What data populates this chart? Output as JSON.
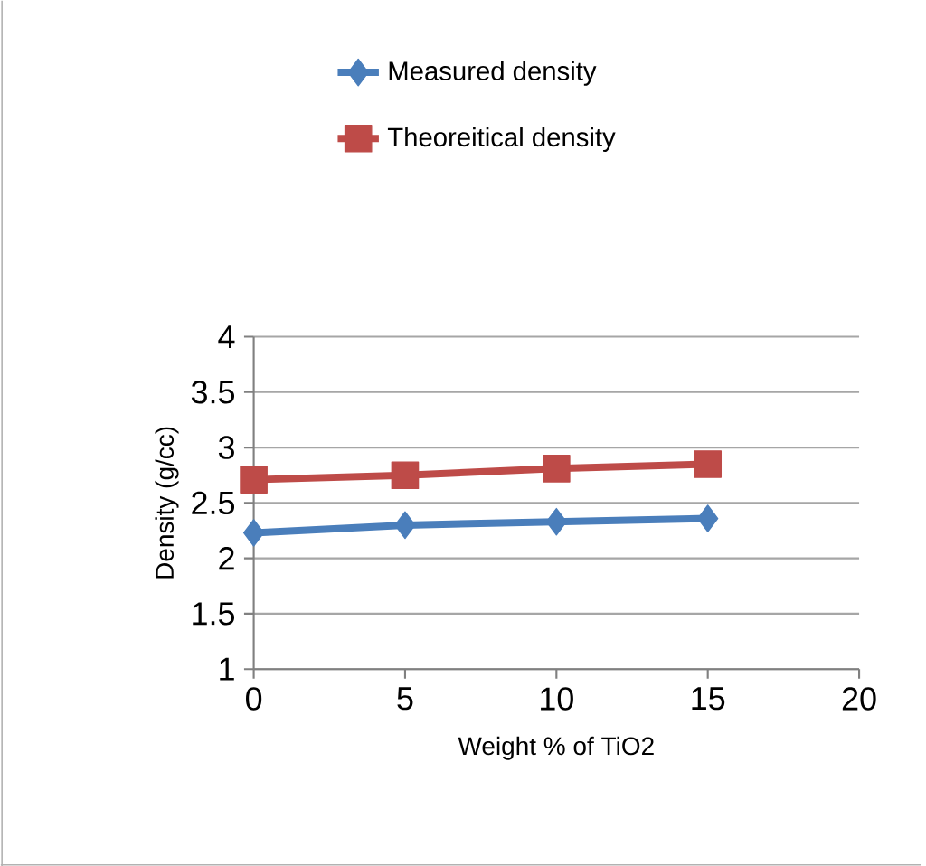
{
  "chart_data": {
    "type": "line",
    "xlabel": "Weight % of TiO2",
    "ylabel": "Density (g/cc)",
    "x": [
      0,
      5,
      10,
      15
    ],
    "series": [
      {
        "name": "Measured density",
        "color": "#4a7ebb",
        "marker": "diamond",
        "values": [
          2.23,
          2.3,
          2.33,
          2.36
        ]
      },
      {
        "name": "Theoreitical density",
        "color": "#be4b48",
        "marker": "square",
        "values": [
          2.71,
          2.75,
          2.81,
          2.85
        ]
      }
    ],
    "xlim": [
      0,
      20
    ],
    "xticks": [
      0,
      5,
      10,
      15,
      20
    ],
    "ylim": [
      1,
      4
    ],
    "yticks": [
      1,
      1.5,
      2,
      2.5,
      3,
      3.5,
      4
    ],
    "grid": "y",
    "legend": "top"
  }
}
